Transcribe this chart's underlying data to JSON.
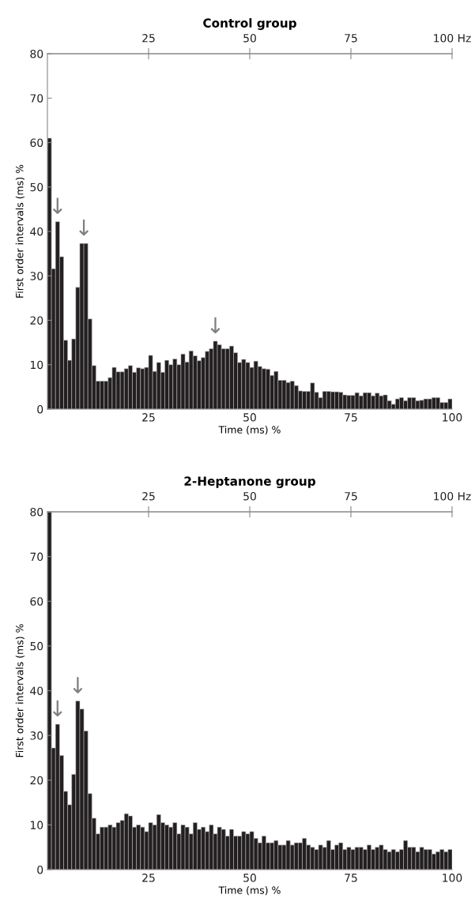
{
  "chart_data": [
    {
      "type": "histogram",
      "title": "Control group",
      "xlabel": "Time (ms) %",
      "ylabel": "First order intervals (ms) %",
      "bins": [
        0,
        1,
        2,
        3,
        4,
        5,
        6,
        7,
        8,
        9,
        10,
        11,
        12,
        13,
        14,
        15,
        16,
        17,
        18,
        19,
        20,
        21,
        22,
        23,
        24,
        25,
        26,
        27,
        28,
        29,
        30,
        31,
        32,
        33,
        34,
        35,
        36,
        37,
        38,
        39,
        40,
        41,
        42,
        43,
        44,
        45,
        46,
        47,
        48,
        49,
        50,
        51,
        52,
        53,
        54,
        55,
        56,
        57,
        58,
        59,
        60,
        61,
        62,
        63,
        64,
        65,
        66,
        67,
        68,
        69,
        70,
        71,
        72,
        73,
        74,
        75,
        76,
        77,
        78,
        79,
        80,
        81,
        82,
        83,
        84,
        85,
        86,
        87,
        88,
        89,
        90,
        91,
        92,
        93,
        94,
        95,
        96,
        97,
        98,
        99,
        100
      ],
      "values": [
        61,
        31.6,
        42.2,
        34.3,
        15.5,
        11,
        15.8,
        27.4,
        37.3,
        37.3,
        20.3,
        9.8,
        6.3,
        6.3,
        6.3,
        7.1,
        9.4,
        8.4,
        8.4,
        9.1,
        9.8,
        8.3,
        9.3,
        9.1,
        9.4,
        12.1,
        8.5,
        10.5,
        8.3,
        11,
        10,
        11.3,
        10,
        12.4,
        10.6,
        13.1,
        12,
        10.9,
        11.6,
        13,
        13.6,
        15.3,
        14.5,
        13.6,
        13.6,
        14.2,
        12.7,
        10.5,
        11.2,
        10.5,
        9.4,
        10.8,
        9.6,
        9.1,
        9,
        7.6,
        8.5,
        6.5,
        6.5,
        6,
        6.3,
        5.3,
        4.1,
        4,
        4,
        5.9,
        3.8,
        2.6,
        4,
        4,
        3.9,
        3.9,
        3.8,
        3.2,
        3.1,
        3.1,
        3.7,
        3,
        3.7,
        3.7,
        3,
        3.6,
        3,
        3.2,
        1.9,
        1.1,
        2.3,
        2.6,
        1.9,
        2.6,
        2.6,
        1.9,
        2,
        2.3,
        2.3,
        2.6,
        2.6,
        1.5,
        1.5,
        2.3
      ],
      "color": "#231f20",
      "xlim": [
        0,
        100
      ],
      "xticks": [
        25,
        50,
        75,
        100
      ],
      "x2lim": [
        0,
        100
      ],
      "x2ticks": [
        25,
        50,
        75,
        {
          "value": 100,
          "label": "100 Hz"
        }
      ],
      "ylim": [
        0,
        80
      ],
      "yticks": [
        0,
        10,
        20,
        30,
        40,
        50,
        60,
        70,
        80
      ],
      "grid": false,
      "annotations": [
        {
          "text": "↓",
          "x": 2.5,
          "y": 42.2
        },
        {
          "text": "↓",
          "x": 9,
          "y": 37.3
        },
        {
          "text": "↓",
          "x": 41.5,
          "y": 15.3
        }
      ]
    },
    {
      "type": "histogram",
      "title": "2-Heptanone group",
      "xlabel": "Time (ms) %",
      "ylabel": "First order intervals (ms) %",
      "bins": [
        0,
        1,
        2,
        3,
        4,
        5,
        6,
        7,
        8,
        9,
        10,
        11,
        12,
        13,
        14,
        15,
        16,
        17,
        18,
        19,
        20,
        21,
        22,
        23,
        24,
        25,
        26,
        27,
        28,
        29,
        30,
        31,
        32,
        33,
        34,
        35,
        36,
        37,
        38,
        39,
        40,
        41,
        42,
        43,
        44,
        45,
        46,
        47,
        48,
        49,
        50,
        51,
        52,
        53,
        54,
        55,
        56,
        57,
        58,
        59,
        60,
        61,
        62,
        63,
        64,
        65,
        66,
        67,
        68,
        69,
        70,
        71,
        72,
        73,
        74,
        75,
        76,
        77,
        78,
        79,
        80,
        81,
        82,
        83,
        84,
        85,
        86,
        87,
        88,
        89,
        90,
        91,
        92,
        93,
        94,
        95,
        96,
        97,
        98,
        99,
        100
      ],
      "values": [
        80,
        27.2,
        32.5,
        25.5,
        17.5,
        14.5,
        21.3,
        37.7,
        35.9,
        31,
        17,
        11.5,
        8,
        9.5,
        9.5,
        10,
        9.5,
        10.5,
        11,
        12.5,
        12,
        9.5,
        10,
        9.5,
        8.5,
        10.5,
        10,
        12.3,
        10.5,
        10,
        9.5,
        10.5,
        8,
        10,
        9.5,
        8,
        10.5,
        9,
        9.5,
        8.5,
        10,
        8,
        9.5,
        9,
        7.5,
        9,
        7.5,
        7.5,
        8.5,
        8,
        8.5,
        7,
        6,
        7.5,
        6,
        6,
        6.5,
        5.5,
        5.5,
        6.5,
        5.5,
        6,
        6,
        7,
        5.5,
        5,
        4.5,
        5.5,
        5,
        6.5,
        4.5,
        5.5,
        6,
        4.5,
        5,
        4.5,
        5,
        5,
        4.5,
        5.5,
        4.5,
        5,
        5.5,
        4.5,
        4,
        4.5,
        4,
        4.5,
        6.5,
        5,
        5,
        4,
        5,
        4.5,
        4.5,
        3.5,
        4,
        4.5,
        4,
        4.5
      ],
      "color": "#231f20",
      "xlim": [
        0,
        100
      ],
      "xticks": [
        25,
        50,
        75,
        100
      ],
      "x2lim": [
        0,
        100
      ],
      "x2ticks": [
        25,
        50,
        75,
        {
          "value": 100,
          "label": "100 Hz"
        }
      ],
      "ylim": [
        0,
        80
      ],
      "yticks": [
        0,
        10,
        20,
        30,
        40,
        50,
        60,
        70,
        80
      ],
      "grid": false,
      "annotations": [
        {
          "text": "↓",
          "x": 2.5,
          "y": 32.5
        },
        {
          "text": "↓",
          "x": 7.5,
          "y": 37.7
        }
      ]
    }
  ]
}
